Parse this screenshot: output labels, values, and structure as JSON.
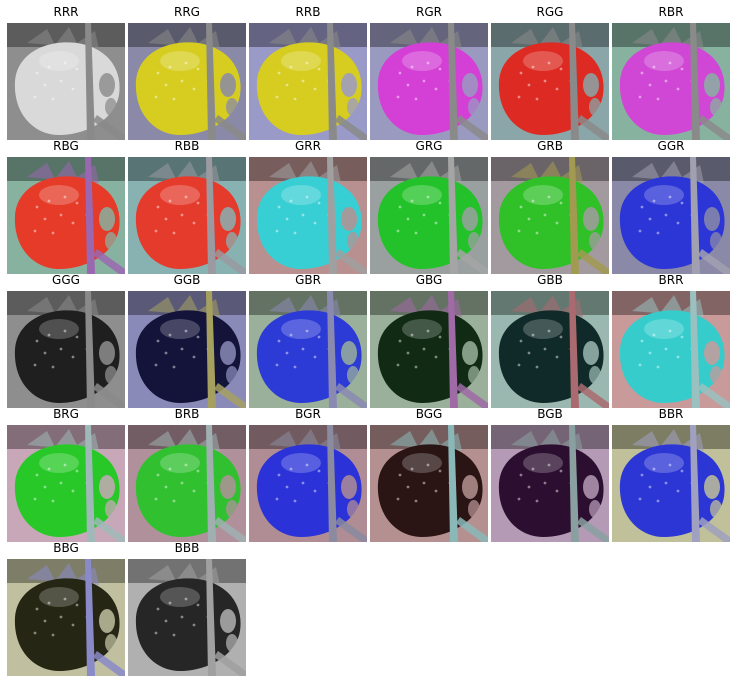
{
  "panels": [
    {
      "label": "RRR",
      "colors": {
        "r": "#d9d9d9",
        "g": "#8a8a8a",
        "b": "#8e8e8e"
      }
    },
    {
      "label": "RRG",
      "colors": {
        "r": "#d6cd20",
        "g": "#8a8a8a",
        "b": "#8a8aa8"
      }
    },
    {
      "label": "RRB",
      "colors": {
        "r": "#d6cd20",
        "g": "#8a8a8a",
        "b": "#9a9ac8"
      }
    },
    {
      "label": "RGR",
      "colors": {
        "r": "#d43fd6",
        "g": "#8a8a8a",
        "b": "#9a9ac0"
      }
    },
    {
      "label": "RGG",
      "colors": {
        "r": "#dd2a22",
        "g": "#8a8a8a",
        "b": "#8aa6a8"
      }
    },
    {
      "label": "RBR",
      "colors": {
        "r": "#cf47d4",
        "g": "#8a8a8a",
        "b": "#88b2a0"
      }
    },
    {
      "label": "RBG",
      "colors": {
        "r": "#e53b28",
        "g": "#9a68b0",
        "b": "#88b2a0"
      }
    },
    {
      "label": "RBB",
      "colors": {
        "r": "#e53b2c",
        "g": "#9a9aa0",
        "b": "#88b2b2"
      }
    },
    {
      "label": "GRR",
      "colors": {
        "r": "#38cfd4",
        "g": "#a0a0a0",
        "b": "#b99090"
      }
    },
    {
      "label": "GRG",
      "colors": {
        "r": "#24c22a",
        "g": "#a5a5a5",
        "b": "#9aa0a0"
      }
    },
    {
      "label": "GRB",
      "colors": {
        "r": "#30c028",
        "g": "#a29a50",
        "b": "#a39aa0"
      }
    },
    {
      "label": "GGR",
      "colors": {
        "r": "#2c35d6",
        "g": "#a0a0b0",
        "b": "#8a8aa8"
      }
    },
    {
      "label": "GGG",
      "colors": {
        "r": "#1f1f1f",
        "g": "#8a8a8a",
        "b": "#8e8e8e"
      }
    },
    {
      "label": "GGB",
      "colors": {
        "r": "#14143a",
        "g": "#a6a060",
        "b": "#8a8ab8"
      }
    },
    {
      "label": "GBR",
      "colors": {
        "r": "#2c3ad6",
        "g": "#8a8ab0",
        "b": "#9ab09a"
      }
    },
    {
      "label": "GBG",
      "colors": {
        "r": "#102a14",
        "g": "#a06aa6",
        "b": "#9ab09a"
      }
    },
    {
      "label": "GBB",
      "colors": {
        "r": "#0f2a28",
        "g": "#aa6a70",
        "b": "#9ab8b0"
      }
    },
    {
      "label": "BRR",
      "colors": {
        "r": "#36cccc",
        "g": "#9ac0c0",
        "b": "#c89a9a"
      }
    },
    {
      "label": "BRG",
      "colors": {
        "r": "#27c827",
        "g": "#a0b8b8",
        "b": "#c8a8b8"
      }
    },
    {
      "label": "BRB",
      "colors": {
        "r": "#30c030",
        "g": "#a0b0b0",
        "b": "#b0909a"
      }
    },
    {
      "label": "BGR",
      "colors": {
        "r": "#2a32d8",
        "g": "#8a8aa0",
        "b": "#b08c94"
      }
    },
    {
      "label": "BGG",
      "colors": {
        "r": "#2a1414",
        "g": "#8ab8b8",
        "b": "#b49090"
      }
    },
    {
      "label": "BGB",
      "colors": {
        "r": "#2c0f30",
        "g": "#8aa0a0",
        "b": "#b49ab4"
      }
    },
    {
      "label": "BBR",
      "colors": {
        "r": "#2c36d4",
        "g": "#a0a0c0",
        "b": "#c0c09a"
      }
    },
    {
      "label": "BBG",
      "colors": {
        "r": "#262614",
        "g": "#8a8ac8",
        "b": "#c0c0a0"
      }
    },
    {
      "label": "BBB",
      "colors": {
        "r": "#262626",
        "g": "#a0a0a0",
        "b": "#b0b0b0"
      }
    }
  ]
}
